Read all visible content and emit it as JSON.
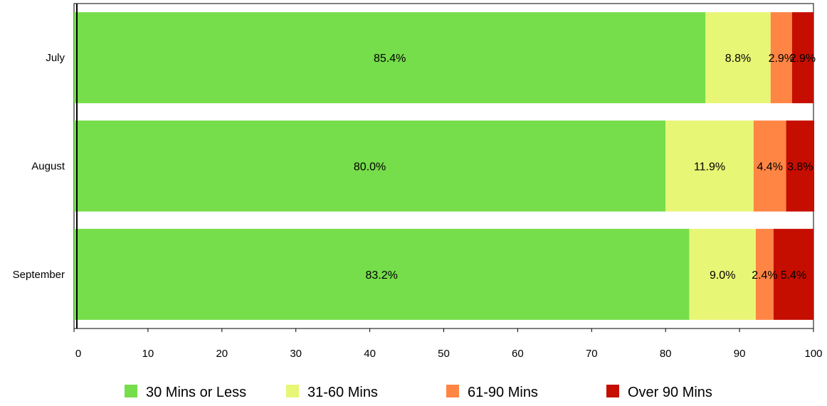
{
  "chart_data": {
    "type": "bar",
    "orientation": "horizontal",
    "stacked": true,
    "categories": [
      "July",
      "August",
      "September"
    ],
    "series": [
      {
        "name": "30 Mins or Less",
        "values": [
          85.4,
          80.0,
          83.2
        ],
        "labels": [
          "85.4%",
          "80.0%",
          "83.2%"
        ],
        "color": "#76DD4B"
      },
      {
        "name": "31-60 Mins",
        "values": [
          8.8,
          11.9,
          9.0
        ],
        "labels": [
          "8.8%",
          "11.9%",
          "9.0%"
        ],
        "color": "#E8F676"
      },
      {
        "name": "61-90 Mins",
        "values": [
          2.9,
          4.4,
          2.4
        ],
        "labels": [
          "2.9%",
          "4.4%",
          "2.4%"
        ],
        "color": "#FF8544"
      },
      {
        "name": "Over 90 Mins",
        "values": [
          2.9,
          3.8,
          5.4
        ],
        "labels": [
          "2.9%",
          "3.8%",
          "5.4%"
        ],
        "color": "#C50E00"
      }
    ],
    "xlim": [
      0,
      100
    ],
    "xticks": [
      "0",
      "10",
      "20",
      "30",
      "40",
      "50",
      "60",
      "70",
      "80",
      "90",
      "100"
    ],
    "grid": false,
    "legend_position": "bottom",
    "title": "",
    "xlabel": "",
    "ylabel": ""
  }
}
